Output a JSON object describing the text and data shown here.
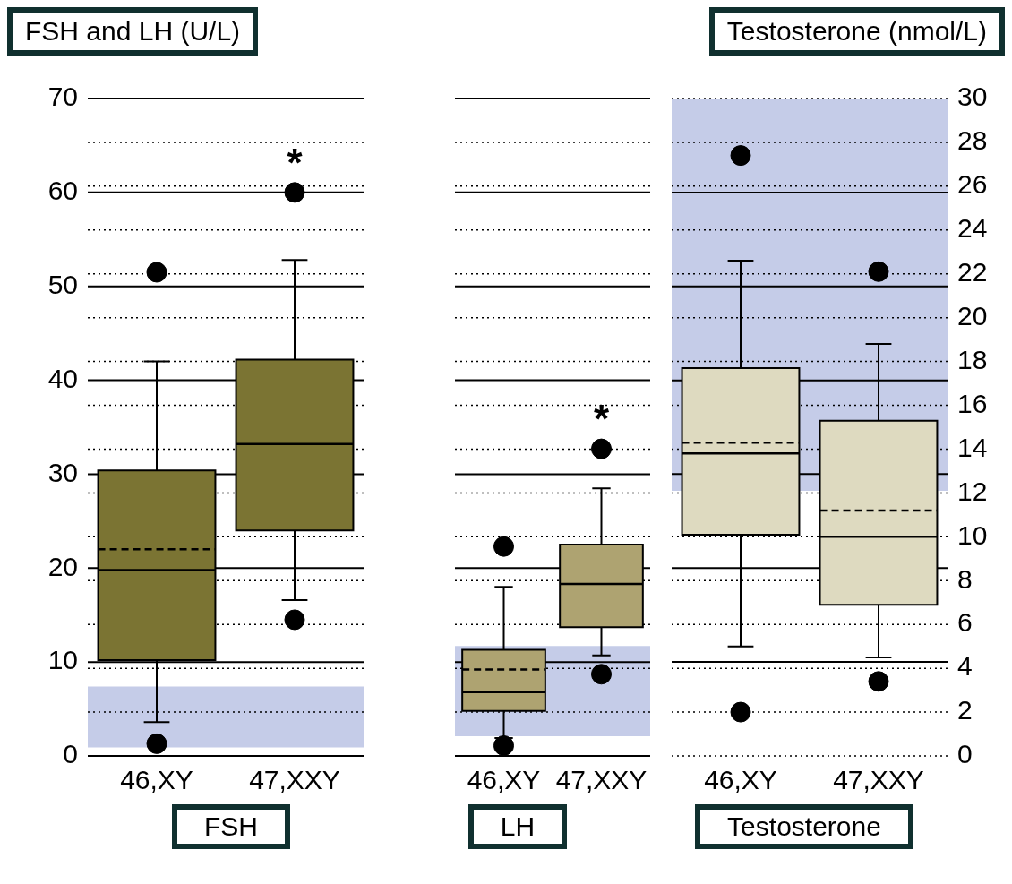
{
  "chart_data": [
    {
      "type": "box",
      "ylabel": "FSH and LH (U/L)",
      "xlabel": "FSH",
      "categories": [
        "46,XY",
        "47,XXY"
      ],
      "series": [
        {
          "color": "#7b7433",
          "boxes": [
            {
              "low": 3.6,
              "q1": 10.2,
              "median": 19.8,
              "q3": 30.4,
              "high": 42,
              "mean": 22,
              "outliers": [
                51.5,
                1.3
              ]
            },
            {
              "low": 16.6,
              "q1": 24,
              "median": 33.2,
              "q3": 42.2,
              "high": 52.8,
              "outliers": [
                60,
                14.5
              ]
            }
          ]
        }
      ],
      "ylim": [
        0,
        70
      ],
      "yticks": [
        0,
        {
          "value": 4.67,
          "label": null
        },
        {
          "value": 9.33,
          "label": null
        },
        10,
        {
          "value": 14,
          "label": null
        },
        {
          "value": 18.67,
          "label": null
        },
        20,
        {
          "value": 23.33,
          "label": null
        },
        {
          "value": 28,
          "label": null
        },
        30,
        {
          "value": 32.67,
          "label": null
        },
        {
          "value": 37.33,
          "label": null
        },
        40,
        {
          "value": 42,
          "label": null
        },
        {
          "value": 46.67,
          "label": null
        },
        50,
        {
          "value": 51.33,
          "label": null
        },
        {
          "value": 56,
          "label": null
        },
        60,
        {
          "value": 60.67,
          "label": null
        },
        {
          "value": 65.33,
          "label": null
        },
        70
      ],
      "bands": [
        {
          "axis": "y",
          "from": 0.9,
          "to": 7.4,
          "color": "#c5cce8"
        }
      ],
      "annotations": [
        "*"
      ],
      "grid": true
    },
    {
      "type": "box",
      "xlabel": "LH",
      "categories": [
        "46,XY",
        "47,XXY"
      ],
      "series": [
        {
          "color": "#aea371",
          "boxes": [
            {
              "low": 1.9,
              "q1": 4.8,
              "median": 6.8,
              "q3": 11.3,
              "high": 18,
              "mean": 9.2,
              "outliers": [
                22.3,
                1.1
              ]
            },
            {
              "low": 10.7,
              "q1": 13.7,
              "median": 18.3,
              "q3": 22.5,
              "high": 28.5,
              "outliers": [
                32.7,
                8.7
              ]
            }
          ]
        }
      ],
      "ylim": [
        0,
        70
      ],
      "yticks": [
        0,
        {
          "value": 4.67,
          "label": null
        },
        {
          "value": 9.33,
          "label": null
        },
        10,
        {
          "value": 14,
          "label": null
        },
        {
          "value": 18.67,
          "label": null
        },
        20,
        {
          "value": 23.33,
          "label": null
        },
        {
          "value": 28,
          "label": null
        },
        30,
        {
          "value": 32.67,
          "label": null
        },
        {
          "value": 37.33,
          "label": null
        },
        40,
        {
          "value": 42,
          "label": null
        },
        {
          "value": 46.67,
          "label": null
        },
        50,
        {
          "value": 51.33,
          "label": null
        },
        {
          "value": 56,
          "label": null
        },
        60,
        {
          "value": 60.67,
          "label": null
        },
        {
          "value": 65.33,
          "label": null
        },
        70
      ],
      "tick_labels": "x",
      "bands": [
        {
          "axis": "y",
          "from": 2.1,
          "to": 11.7,
          "color": "#c5cce8"
        }
      ],
      "annotations": [
        "*"
      ],
      "grid": true
    },
    {
      "type": "box",
      "y2label": "Testosterone (nmol/L)",
      "xlabel": "Testosterone",
      "categories": [
        "46,XY",
        "47,XXY"
      ],
      "series": [
        {
          "axis": "y2",
          "color": "#dedac0",
          "boxes": [
            {
              "low": 5,
              "q1": 10.1,
              "median": 13.8,
              "q3": 17.7,
              "high": 22.6,
              "mean": 14.3,
              "outliers": [
                27.4,
                2
              ]
            },
            {
              "low": 4.5,
              "q1": 6.9,
              "median": 10,
              "q3": 15.3,
              "high": 18.8,
              "mean": 11.2,
              "outliers": [
                22.1,
                3.4
              ]
            }
          ]
        }
      ],
      "y2lim": [
        0,
        30
      ],
      "y2ticks": [
        0,
        2,
        4,
        {
          "value": 4.29,
          "label": null
        },
        6,
        8,
        {
          "value": 8.57,
          "label": null
        },
        10,
        12,
        {
          "value": 12.86,
          "label": null
        },
        14,
        16,
        {
          "value": 17.14,
          "label": null
        },
        18,
        20,
        {
          "value": 21.43,
          "label": null
        },
        22,
        24,
        {
          "value": 25.71,
          "label": null
        },
        26,
        28,
        30
      ],
      "bands": [
        {
          "axis": "y2",
          "from": 12.1,
          "to": 30,
          "color": "#c5cce8"
        }
      ],
      "grid": true
    }
  ]
}
